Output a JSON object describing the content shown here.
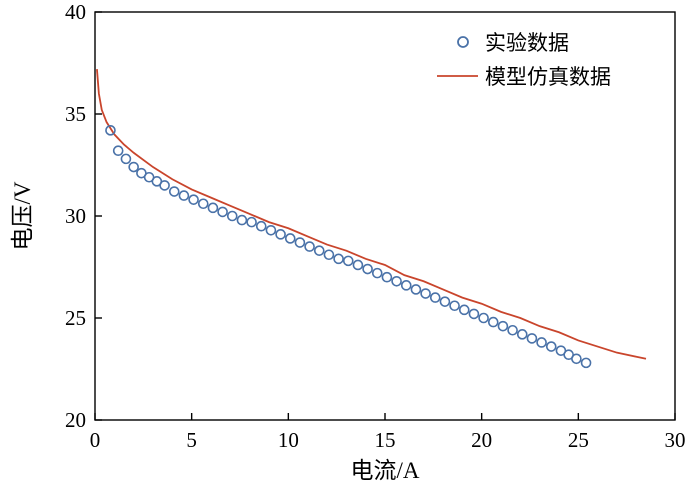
{
  "chart_data": {
    "type": "scatter",
    "title": "",
    "xlabel": "电流/A",
    "ylabel": "电压/V",
    "xlim": [
      0,
      30
    ],
    "ylim": [
      20,
      40
    ],
    "xticks": [
      0,
      5,
      10,
      15,
      20,
      25,
      30
    ],
    "yticks": [
      20,
      25,
      30,
      35,
      40
    ],
    "grid": false,
    "legend_position": "upper-right-inside",
    "plot_border_color": "#000000",
    "series": [
      {
        "name": "实验数据",
        "type": "scatter",
        "marker": "open-circle",
        "color": "#4a72a8",
        "points": [
          [
            0.8,
            34.2
          ],
          [
            1.2,
            33.2
          ],
          [
            1.6,
            32.8
          ],
          [
            2.0,
            32.4
          ],
          [
            2.4,
            32.1
          ],
          [
            2.8,
            31.9
          ],
          [
            3.2,
            31.7
          ],
          [
            3.6,
            31.5
          ],
          [
            4.1,
            31.2
          ],
          [
            4.6,
            31.0
          ],
          [
            5.1,
            30.8
          ],
          [
            5.6,
            30.6
          ],
          [
            6.1,
            30.4
          ],
          [
            6.6,
            30.2
          ],
          [
            7.1,
            30.0
          ],
          [
            7.6,
            29.8
          ],
          [
            8.1,
            29.7
          ],
          [
            8.6,
            29.5
          ],
          [
            9.1,
            29.3
          ],
          [
            9.6,
            29.1
          ],
          [
            10.1,
            28.9
          ],
          [
            10.6,
            28.7
          ],
          [
            11.1,
            28.5
          ],
          [
            11.6,
            28.3
          ],
          [
            12.1,
            28.1
          ],
          [
            12.6,
            27.9
          ],
          [
            13.1,
            27.8
          ],
          [
            13.6,
            27.6
          ],
          [
            14.1,
            27.4
          ],
          [
            14.6,
            27.2
          ],
          [
            15.1,
            27.0
          ],
          [
            15.6,
            26.8
          ],
          [
            16.1,
            26.6
          ],
          [
            16.6,
            26.4
          ],
          [
            17.1,
            26.2
          ],
          [
            17.6,
            26.0
          ],
          [
            18.1,
            25.8
          ],
          [
            18.6,
            25.6
          ],
          [
            19.1,
            25.4
          ],
          [
            19.6,
            25.2
          ],
          [
            20.1,
            25.0
          ],
          [
            20.6,
            24.8
          ],
          [
            21.1,
            24.6
          ],
          [
            21.6,
            24.4
          ],
          [
            22.1,
            24.2
          ],
          [
            22.6,
            24.0
          ],
          [
            23.1,
            23.8
          ],
          [
            23.6,
            23.6
          ],
          [
            24.1,
            23.4
          ],
          [
            24.5,
            23.2
          ],
          [
            24.9,
            23.0
          ],
          [
            25.4,
            22.8
          ]
        ]
      },
      {
        "name": "模型仿真数据",
        "type": "line",
        "color": "#c9452c",
        "points": [
          [
            0.1,
            37.2
          ],
          [
            0.2,
            36.0
          ],
          [
            0.35,
            35.2
          ],
          [
            0.6,
            34.6
          ],
          [
            1.0,
            34.0
          ],
          [
            1.5,
            33.5
          ],
          [
            2.0,
            33.1
          ],
          [
            3.0,
            32.4
          ],
          [
            4.0,
            31.8
          ],
          [
            5.0,
            31.3
          ],
          [
            6.0,
            30.9
          ],
          [
            7.0,
            30.5
          ],
          [
            8.0,
            30.1
          ],
          [
            9.0,
            29.7
          ],
          [
            10.0,
            29.4
          ],
          [
            11.0,
            29.0
          ],
          [
            12.0,
            28.6
          ],
          [
            13.0,
            28.3
          ],
          [
            14.0,
            27.9
          ],
          [
            15.0,
            27.6
          ],
          [
            16.0,
            27.1
          ],
          [
            17.0,
            26.8
          ],
          [
            18.0,
            26.4
          ],
          [
            19.0,
            26.0
          ],
          [
            20.0,
            25.7
          ],
          [
            21.0,
            25.3
          ],
          [
            22.0,
            25.0
          ],
          [
            23.0,
            24.6
          ],
          [
            24.0,
            24.3
          ],
          [
            25.0,
            23.9
          ],
          [
            26.0,
            23.6
          ],
          [
            27.0,
            23.3
          ],
          [
            28.0,
            23.1
          ],
          [
            28.5,
            23.0
          ]
        ]
      }
    ]
  }
}
